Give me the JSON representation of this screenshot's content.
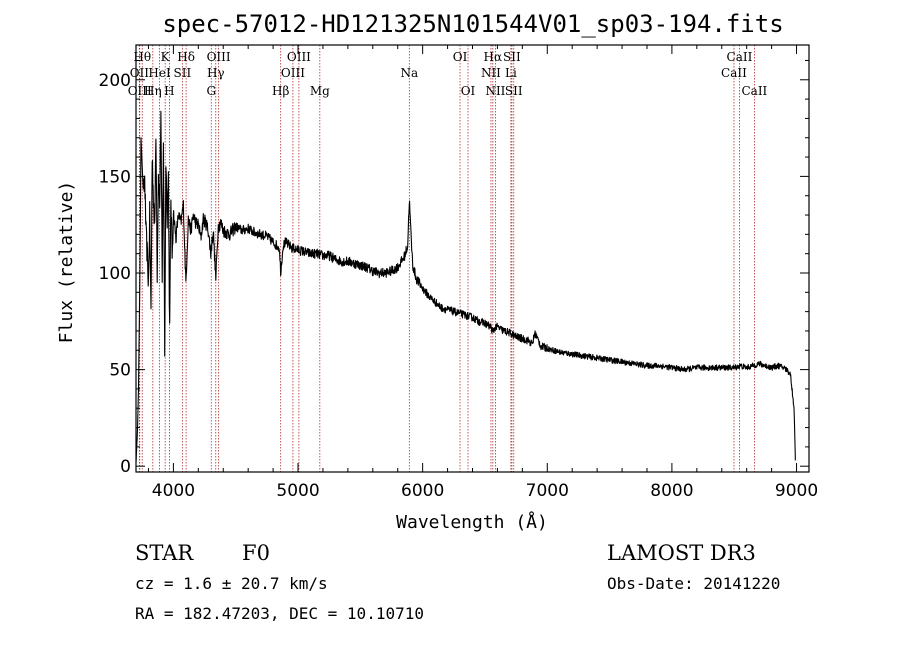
{
  "chart_data": {
    "type": "line",
    "title": "spec-57012-HD121325N101544V01_sp03-194.fits",
    "xlabel": "Wavelength (Å)",
    "ylabel": "Flux (relative)",
    "xlim": [
      3700,
      9100
    ],
    "ylim": [
      -3,
      218
    ],
    "xticks": [
      4000,
      5000,
      6000,
      7000,
      8000,
      9000
    ],
    "yticks": [
      0,
      50,
      100,
      150,
      200
    ],
    "xtick_labels": [
      "4000",
      "5000",
      "6000",
      "7000",
      "8000",
      "9000"
    ],
    "ytick_labels": [
      "0",
      "50",
      "100",
      "150",
      "200"
    ],
    "spectral_lines": [
      {
        "label": "Hθ",
        "wavelength": 3750,
        "row": 0
      },
      {
        "label": "OII",
        "wavelength": 3727,
        "row": 1
      },
      {
        "label": "OIII",
        "wavelength": 3730,
        "row": 2
      },
      {
        "label": "Hη",
        "wavelength": 3835,
        "row": 2
      },
      {
        "label": "K",
        "wavelength": 3934,
        "row": 0
      },
      {
        "label": "HeI",
        "wavelength": 3889,
        "row": 1
      },
      {
        "label": "H",
        "wavelength": 3968,
        "row": 2
      },
      {
        "label": "SII",
        "wavelength": 4072,
        "row": 1
      },
      {
        "label": "Hδ",
        "wavelength": 4102,
        "row": 0
      },
      {
        "label": "OIII",
        "wavelength": 4363,
        "row": 0
      },
      {
        "label": "Hγ",
        "wavelength": 4340,
        "row": 1
      },
      {
        "label": "G",
        "wavelength": 4304,
        "row": 2
      },
      {
        "label": "Hβ",
        "wavelength": 4861,
        "row": 2
      },
      {
        "label": "OIII",
        "wavelength": 5007,
        "row": 0
      },
      {
        "label": "OIII",
        "wavelength": 4959,
        "row": 1
      },
      {
        "label": "Mg",
        "wavelength": 5175,
        "row": 2
      },
      {
        "label": "Na",
        "wavelength": 5893,
        "row": 1
      },
      {
        "label": "OI",
        "wavelength": 6300,
        "row": 0
      },
      {
        "label": "OI",
        "wavelength": 6364,
        "row": 2
      },
      {
        "label": "Hα",
        "wavelength": 6563,
        "row": 0
      },
      {
        "label": "SII",
        "wavelength": 6716,
        "row": 0
      },
      {
        "label": "NII",
        "wavelength": 6548,
        "row": 1
      },
      {
        "label": "Li",
        "wavelength": 6708,
        "row": 1
      },
      {
        "label": "NII",
        "wavelength": 6584,
        "row": 2
      },
      {
        "label": "SII",
        "wavelength": 6731,
        "row": 2
      },
      {
        "label": "CaII",
        "wavelength": 8542,
        "row": 0
      },
      {
        "label": "CaII",
        "wavelength": 8498,
        "row": 1
      },
      {
        "label": "CaII",
        "wavelength": 8662,
        "row": 2
      }
    ],
    "spectrum": {
      "x": [
        3700,
        3710,
        3720,
        3730,
        3740,
        3750,
        3760,
        3770,
        3780,
        3790,
        3800,
        3810,
        3820,
        3830,
        3840,
        3850,
        3860,
        3870,
        3880,
        3890,
        3900,
        3910,
        3920,
        3930,
        3940,
        3950,
        3960,
        3970,
        3980,
        3990,
        4000,
        4020,
        4040,
        4060,
        4080,
        4100,
        4120,
        4140,
        4160,
        4180,
        4200,
        4220,
        4240,
        4260,
        4280,
        4300,
        4320,
        4340,
        4360,
        4380,
        4400,
        4450,
        4500,
        4550,
        4600,
        4650,
        4700,
        4750,
        4800,
        4850,
        4861,
        4880,
        4900,
        4950,
        5000,
        5050,
        5100,
        5150,
        5200,
        5250,
        5300,
        5350,
        5400,
        5450,
        5500,
        5550,
        5600,
        5650,
        5700,
        5750,
        5800,
        5850,
        5880,
        5893,
        5905,
        5920,
        5950,
        6000,
        6050,
        6100,
        6150,
        6200,
        6250,
        6300,
        6350,
        6400,
        6450,
        6500,
        6550,
        6563,
        6580,
        6600,
        6650,
        6700,
        6750,
        6800,
        6850,
        6880,
        6900,
        6950,
        7000,
        7100,
        7200,
        7300,
        7400,
        7500,
        7600,
        7700,
        7800,
        7900,
        8000,
        8100,
        8200,
        8300,
        8400,
        8500,
        8550,
        8600,
        8650,
        8700,
        8750,
        8800,
        8850,
        8900,
        8950,
        8980,
        8990
      ],
      "y": [
        2,
        15,
        40,
        90,
        170,
        155,
        140,
        150,
        120,
        110,
        95,
        130,
        80,
        160,
        140,
        120,
        175,
        100,
        150,
        135,
        185,
        95,
        170,
        60,
        160,
        130,
        150,
        70,
        140,
        110,
        132,
        118,
        130,
        126,
        135,
        95,
        128,
        122,
        130,
        126,
        125,
        118,
        128,
        126,
        122,
        110,
        122,
        97,
        124,
        126,
        122,
        120,
        124,
        122,
        123,
        121,
        120,
        119,
        116,
        113,
        100,
        114,
        116,
        113,
        112,
        111,
        110,
        110,
        109,
        109,
        107,
        106,
        106,
        105,
        104,
        103,
        101,
        100,
        100,
        101,
        103,
        108,
        114,
        138,
        122,
        104,
        97,
        92,
        88,
        85,
        82,
        81,
        80,
        79,
        78,
        77,
        75,
        74,
        72,
        69,
        72,
        72,
        70,
        69,
        67,
        66,
        65,
        63,
        69,
        62,
        61,
        59,
        58,
        57,
        56,
        55,
        54,
        53,
        52,
        52,
        51,
        50,
        51,
        51,
        51,
        51,
        52,
        51,
        52,
        53,
        52,
        51,
        52,
        51,
        48,
        30,
        5
      ]
    }
  },
  "info": {
    "type_label": "STAR",
    "subclass": "F0",
    "survey": "LAMOST DR3",
    "cz": "cz = 1.6 ± 20.7 km/s",
    "obs_date": "Obs-Date: 20141220",
    "coords": "RA = 182.47203, DEC =  10.10710"
  },
  "colors": {
    "spectrum": "#000000",
    "line_marker": "#b03030",
    "axes": "#000000",
    "background": "#ffffff"
  }
}
